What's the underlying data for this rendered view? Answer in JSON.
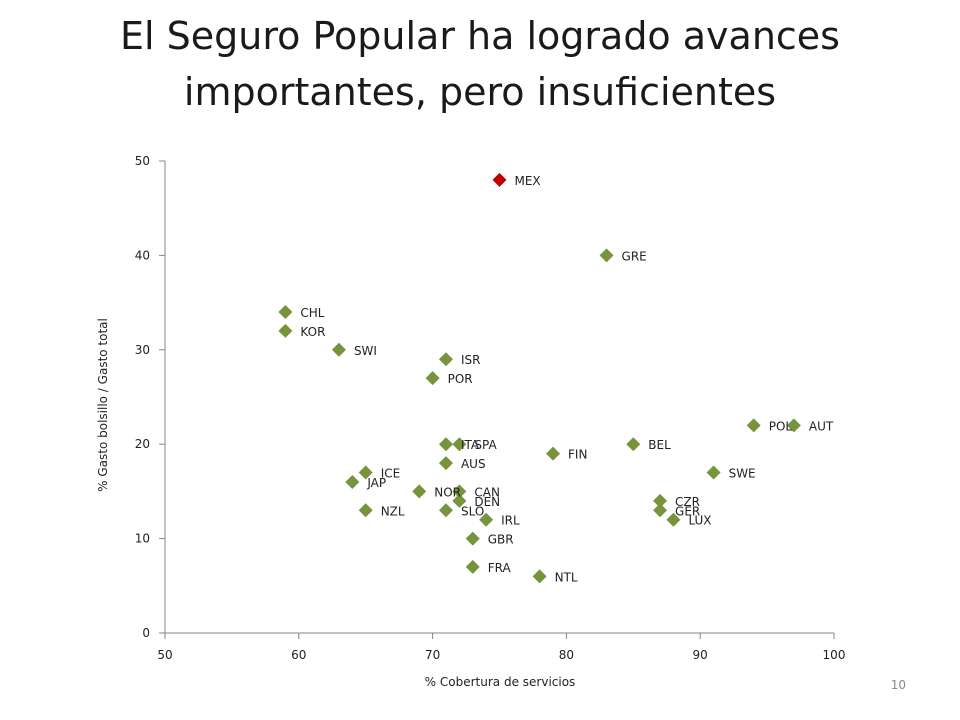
{
  "slide": {
    "title_line1": "El Seguro Popular ha logrado avances",
    "title_line2": "importantes, pero insuficientes",
    "page_number": "10"
  },
  "colors": {
    "series": "#77933c",
    "highlight": "#c00000",
    "axis": "#868686"
  },
  "chart_data": {
    "type": "scatter",
    "title": "",
    "xlabel": "% Cobertura de servicios",
    "ylabel": "% Gasto bolsillo / Gasto total",
    "xlim": [
      50,
      100
    ],
    "ylim": [
      0,
      50
    ],
    "xticks": [
      "50",
      "60",
      "70",
      "80",
      "90",
      "100"
    ],
    "yticks": [
      "0",
      "10",
      "20",
      "30",
      "40",
      "50"
    ],
    "grid": false,
    "legend": "none",
    "marker": "diamond",
    "points": [
      {
        "label": "MEX",
        "x": 75,
        "y": 48,
        "highlight": true
      },
      {
        "label": "GRE",
        "x": 83,
        "y": 40
      },
      {
        "label": "CHL",
        "x": 59,
        "y": 34
      },
      {
        "label": "KOR",
        "x": 59,
        "y": 32
      },
      {
        "label": "SWI",
        "x": 63,
        "y": 30
      },
      {
        "label": "ISR",
        "x": 71,
        "y": 29
      },
      {
        "label": "POR",
        "x": 70,
        "y": 27
      },
      {
        "label": "AUT",
        "x": 97,
        "y": 22
      },
      {
        "label": "POL",
        "x": 94,
        "y": 22
      },
      {
        "label": "ITA",
        "x": 71,
        "y": 20
      },
      {
        "label": "SPA",
        "x": 72,
        "y": 20
      },
      {
        "label": "BEL",
        "x": 85,
        "y": 20
      },
      {
        "label": "FIN",
        "x": 79,
        "y": 19
      },
      {
        "label": "AUS",
        "x": 71,
        "y": 18
      },
      {
        "label": "ICE",
        "x": 65,
        "y": 17
      },
      {
        "label": "SWE",
        "x": 91,
        "y": 17
      },
      {
        "label": "JAP",
        "x": 64,
        "y": 16
      },
      {
        "label": "NOR",
        "x": 69,
        "y": 15
      },
      {
        "label": "CAN",
        "x": 72,
        "y": 15
      },
      {
        "label": "DEN",
        "x": 72,
        "y": 14
      },
      {
        "label": "CZR",
        "x": 87,
        "y": 14
      },
      {
        "label": "NZL",
        "x": 65,
        "y": 13
      },
      {
        "label": "SLO",
        "x": 71,
        "y": 13
      },
      {
        "label": "GER",
        "x": 87,
        "y": 13
      },
      {
        "label": "IRL",
        "x": 74,
        "y": 12
      },
      {
        "label": "LUX",
        "x": 88,
        "y": 12
      },
      {
        "label": "GBR",
        "x": 73,
        "y": 10
      },
      {
        "label": "FRA",
        "x": 73,
        "y": 7
      },
      {
        "label": "NTL",
        "x": 78,
        "y": 6
      }
    ]
  }
}
